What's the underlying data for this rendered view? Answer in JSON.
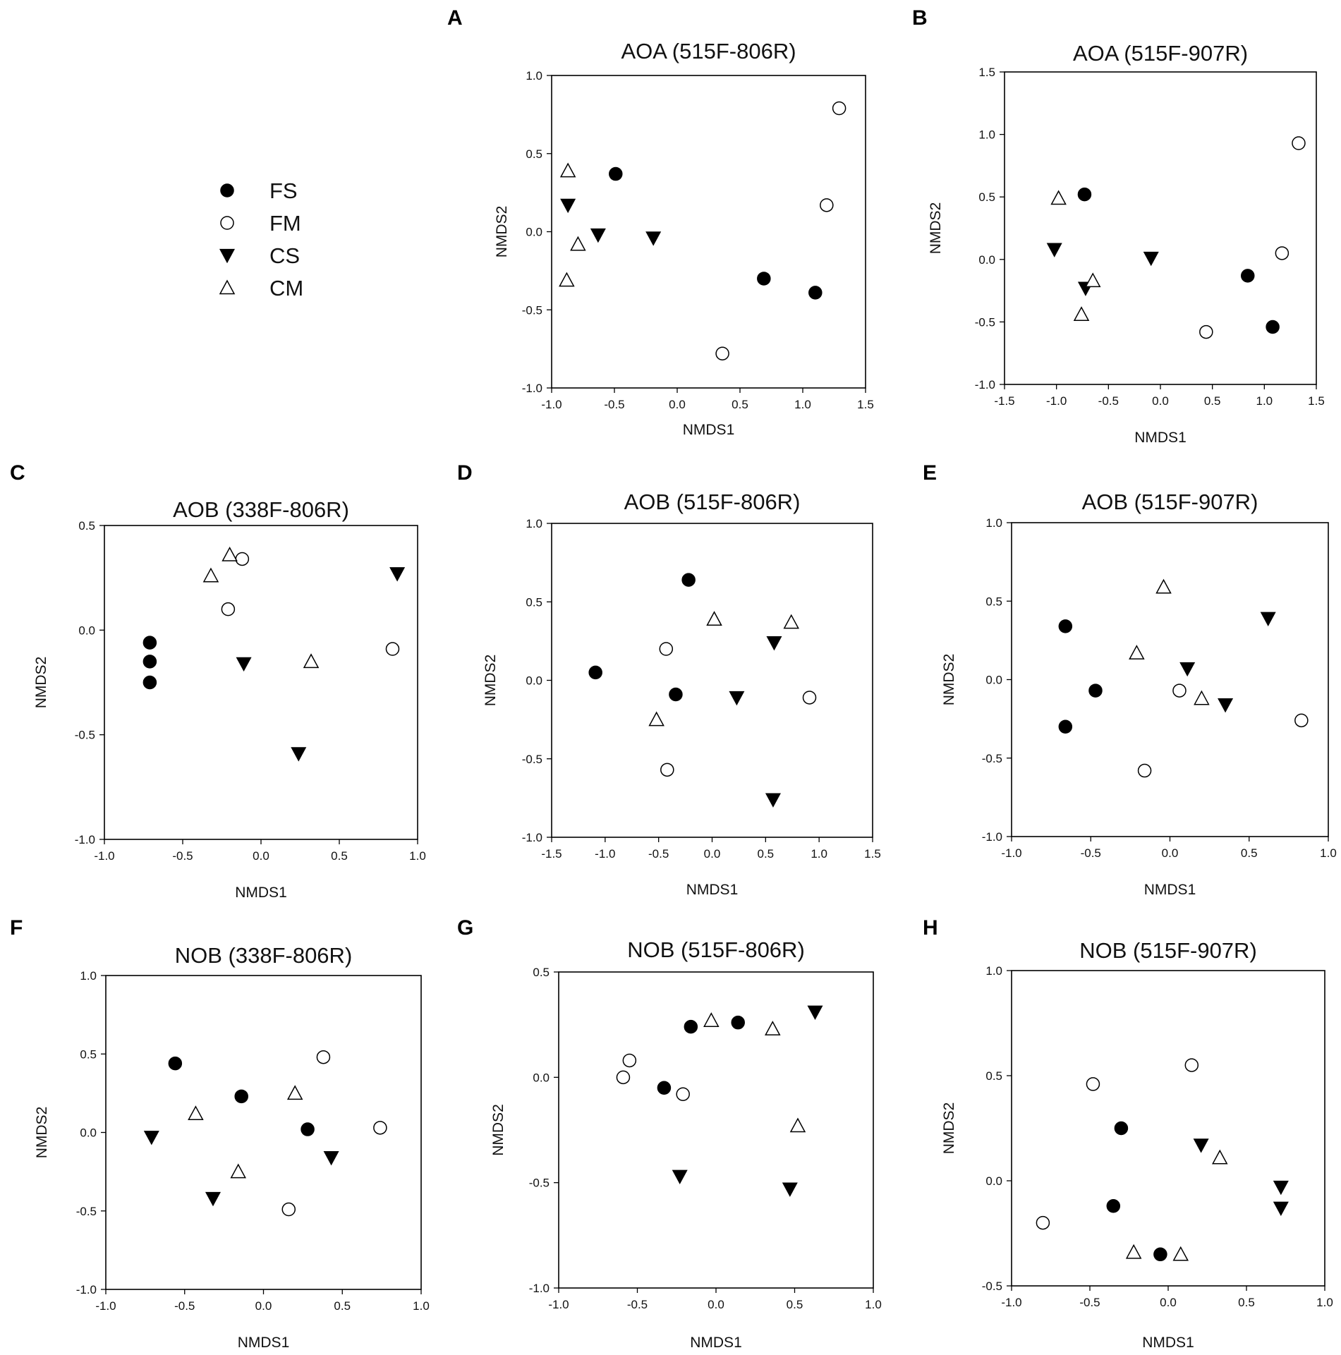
{
  "legend": [
    {
      "group": "FS",
      "label": "FS"
    },
    {
      "group": "FM",
      "label": "FM"
    },
    {
      "group": "CS",
      "label": "CS"
    },
    {
      "group": "CM",
      "label": "CM"
    }
  ],
  "chart_data": [
    {
      "id": "A",
      "letter": "A",
      "type": "scatter",
      "title": "AOA (515F-806R)",
      "xlabel": "NMDS1",
      "ylabel": "NMDS2",
      "xlim": [
        -1.0,
        1.5
      ],
      "ylim": [
        -1.0,
        1.0
      ],
      "xticks": [
        -1.0,
        -0.5,
        0.0,
        0.5,
        1.0,
        1.5
      ],
      "yticks": [
        -1.0,
        -0.5,
        0.0,
        0.5,
        1.0
      ],
      "xtick_labels": [
        "-1.0",
        "-0.5",
        "0.0",
        "0.5",
        "1.0",
        "1.5"
      ],
      "ytick_labels": [
        "-1.0",
        "-0.5",
        "0.0",
        "0.5",
        "1.0"
      ],
      "series": [
        {
          "name": "FS",
          "points": [
            [
              -0.49,
              0.37
            ],
            [
              0.69,
              -0.3
            ],
            [
              1.1,
              -0.39
            ]
          ]
        },
        {
          "name": "FM",
          "points": [
            [
              1.29,
              0.79
            ],
            [
              1.19,
              0.17
            ],
            [
              0.36,
              -0.78
            ]
          ]
        },
        {
          "name": "CS",
          "points": [
            [
              -0.87,
              0.17
            ],
            [
              -0.63,
              -0.02
            ],
            [
              -0.19,
              -0.04
            ]
          ]
        },
        {
          "name": "CM",
          "points": [
            [
              -0.87,
              0.39
            ],
            [
              -0.79,
              -0.08
            ],
            [
              -0.88,
              -0.31
            ]
          ]
        }
      ]
    },
    {
      "id": "B",
      "letter": "B",
      "type": "scatter",
      "title": "AOA (515F-907R)",
      "xlabel": "NMDS1",
      "ylabel": "NMDS2",
      "xlim": [
        -1.5,
        1.5
      ],
      "ylim": [
        -1.0,
        1.5
      ],
      "xticks": [
        -1.5,
        -1.0,
        -0.5,
        0.0,
        0.5,
        1.0,
        1.5
      ],
      "yticks": [
        -1.0,
        -0.5,
        0.0,
        0.5,
        1.0,
        1.5
      ],
      "xtick_labels": [
        "-1.5",
        "-1.0",
        "-0.5",
        "0.0",
        "0.5",
        "1.0",
        "1.5"
      ],
      "ytick_labels": [
        "-1.0",
        "-0.5",
        "0.0",
        "0.5",
        "1.0",
        "1.5"
      ],
      "series": [
        {
          "name": "FS",
          "points": [
            [
              -0.73,
              0.52
            ],
            [
              0.84,
              -0.13
            ],
            [
              1.08,
              -0.54
            ]
          ]
        },
        {
          "name": "FM",
          "points": [
            [
              1.33,
              0.93
            ],
            [
              1.17,
              0.05
            ],
            [
              0.44,
              -0.58
            ]
          ]
        },
        {
          "name": "CS",
          "points": [
            [
              -1.02,
              0.08
            ],
            [
              -0.09,
              0.01
            ],
            [
              -0.72,
              -0.23
            ]
          ]
        },
        {
          "name": "CM",
          "points": [
            [
              -0.98,
              0.49
            ],
            [
              -0.65,
              -0.17
            ],
            [
              -0.76,
              -0.44
            ]
          ]
        }
      ]
    },
    {
      "id": "C",
      "letter": "C",
      "type": "scatter",
      "title": "AOB (338F-806R)",
      "xlabel": "NMDS1",
      "ylabel": "NMDS2",
      "xlim": [
        -1.0,
        1.0
      ],
      "ylim": [
        -1.0,
        0.5
      ],
      "xticks": [
        -1.0,
        -0.5,
        0.0,
        0.5,
        1.0
      ],
      "yticks": [
        -1.0,
        -0.5,
        0.0,
        0.5
      ],
      "xtick_labels": [
        "-1.0",
        "-0.5",
        "0.0",
        "0.5",
        "1.0"
      ],
      "ytick_labels": [
        "-1.0",
        "-0.5",
        "0.0",
        "0.5"
      ],
      "series": [
        {
          "name": "FS",
          "points": [
            [
              -0.71,
              -0.06
            ],
            [
              -0.71,
              -0.15
            ],
            [
              -0.71,
              -0.25
            ]
          ]
        },
        {
          "name": "FM",
          "points": [
            [
              -0.12,
              0.34
            ],
            [
              -0.21,
              0.1
            ],
            [
              0.84,
              -0.09
            ]
          ]
        },
        {
          "name": "CS",
          "points": [
            [
              0.87,
              0.27
            ],
            [
              -0.11,
              -0.16
            ],
            [
              0.24,
              -0.59
            ]
          ]
        },
        {
          "name": "CM",
          "points": [
            [
              -0.32,
              0.26
            ],
            [
              -0.2,
              0.36
            ],
            [
              0.32,
              -0.15
            ]
          ]
        }
      ]
    },
    {
      "id": "D",
      "letter": "D",
      "type": "scatter",
      "title": "AOB (515F-806R)",
      "xlabel": "NMDS1",
      "ylabel": "NMDS2",
      "xlim": [
        -1.5,
        1.5
      ],
      "ylim": [
        -1.0,
        1.0
      ],
      "xticks": [
        -1.5,
        -1.0,
        -0.5,
        0.0,
        0.5,
        1.0,
        1.5
      ],
      "yticks": [
        -1.0,
        -0.5,
        0.0,
        0.5,
        1.0
      ],
      "xtick_labels": [
        "-1.5",
        "-1.0",
        "-0.5",
        "0.0",
        "0.5",
        "1.0",
        "1.5"
      ],
      "ytick_labels": [
        "-1.0",
        "-0.5",
        "0.0",
        "0.5",
        "1.0"
      ],
      "series": [
        {
          "name": "FS",
          "points": [
            [
              -0.22,
              0.64
            ],
            [
              -1.09,
              0.05
            ],
            [
              -0.34,
              -0.09
            ]
          ]
        },
        {
          "name": "FM",
          "points": [
            [
              -0.43,
              0.2
            ],
            [
              0.91,
              -0.11
            ],
            [
              -0.42,
              -0.57
            ]
          ]
        },
        {
          "name": "CS",
          "points": [
            [
              0.58,
              0.24
            ],
            [
              0.23,
              -0.11
            ],
            [
              0.57,
              -0.76
            ]
          ]
        },
        {
          "name": "CM",
          "points": [
            [
              0.02,
              0.39
            ],
            [
              0.74,
              0.37
            ],
            [
              -0.52,
              -0.25
            ]
          ]
        }
      ]
    },
    {
      "id": "E",
      "letter": "E",
      "type": "scatter",
      "title": "AOB (515F-907R)",
      "xlabel": "NMDS1",
      "ylabel": "NMDS2",
      "xlim": [
        -1.0,
        1.0
      ],
      "ylim": [
        -1.0,
        1.0
      ],
      "xticks": [
        -1.0,
        -0.5,
        0.0,
        0.5,
        1.0
      ],
      "yticks": [
        -1.0,
        -0.5,
        0.0,
        0.5,
        1.0
      ],
      "xtick_labels": [
        "-1.0",
        "-0.5",
        "0.0",
        "0.5",
        "1.0"
      ],
      "ytick_labels": [
        "-1.0",
        "-0.5",
        "0.0",
        "0.5",
        "1.0"
      ],
      "series": [
        {
          "name": "FS",
          "points": [
            [
              -0.66,
              0.34
            ],
            [
              -0.47,
              -0.07
            ],
            [
              -0.66,
              -0.3
            ]
          ]
        },
        {
          "name": "FM",
          "points": [
            [
              0.06,
              -0.07
            ],
            [
              -0.16,
              -0.58
            ],
            [
              0.83,
              -0.26
            ]
          ]
        },
        {
          "name": "CS",
          "points": [
            [
              0.62,
              0.39
            ],
            [
              0.11,
              0.07
            ],
            [
              0.35,
              -0.16
            ]
          ]
        },
        {
          "name": "CM",
          "points": [
            [
              -0.04,
              0.59
            ],
            [
              -0.21,
              0.17
            ],
            [
              0.2,
              -0.12
            ]
          ]
        }
      ]
    },
    {
      "id": "F",
      "letter": "F",
      "type": "scatter",
      "title": "NOB (338F-806R)",
      "xlabel": "NMDS1",
      "ylabel": "NMDS2",
      "xlim": [
        -1.0,
        1.0
      ],
      "ylim": [
        -1.0,
        1.0
      ],
      "xticks": [
        -1.0,
        -0.5,
        0.0,
        0.5,
        1.0
      ],
      "yticks": [
        -1.0,
        -0.5,
        0.0,
        0.5,
        1.0
      ],
      "xtick_labels": [
        "-1.0",
        "-0.5",
        "0.0",
        "0.5",
        "1.0"
      ],
      "ytick_labels": [
        "-1.0",
        "-0.5",
        "0.0",
        "0.5",
        "1.0"
      ],
      "series": [
        {
          "name": "FS",
          "points": [
            [
              -0.56,
              0.44
            ],
            [
              -0.14,
              0.23
            ],
            [
              0.28,
              0.02
            ]
          ]
        },
        {
          "name": "FM",
          "points": [
            [
              0.38,
              0.48
            ],
            [
              0.74,
              0.03
            ],
            [
              0.16,
              -0.49
            ]
          ]
        },
        {
          "name": "CS",
          "points": [
            [
              -0.71,
              -0.03
            ],
            [
              0.43,
              -0.16
            ],
            [
              -0.32,
              -0.42
            ]
          ]
        },
        {
          "name": "CM",
          "points": [
            [
              -0.43,
              0.12
            ],
            [
              0.2,
              0.25
            ],
            [
              -0.16,
              -0.25
            ]
          ]
        }
      ]
    },
    {
      "id": "G",
      "letter": "G",
      "type": "scatter",
      "title": "NOB (515F-806R)",
      "xlabel": "NMDS1",
      "ylabel": "NMDS2",
      "xlim": [
        -1.0,
        1.0
      ],
      "ylim": [
        -1.0,
        0.5
      ],
      "xticks": [
        -1.0,
        -0.5,
        0.0,
        0.5,
        1.0
      ],
      "yticks": [
        -1.0,
        -0.5,
        0.0,
        0.5
      ],
      "xtick_labels": [
        "-1.0",
        "-0.5",
        "0.0",
        "0.5",
        "1.0"
      ],
      "ytick_labels": [
        "-1.0",
        "-0.5",
        "0.0",
        "0.5"
      ],
      "series": [
        {
          "name": "FS",
          "points": [
            [
              -0.16,
              0.24
            ],
            [
              0.14,
              0.26
            ],
            [
              -0.33,
              -0.05
            ]
          ]
        },
        {
          "name": "FM",
          "points": [
            [
              -0.55,
              0.08
            ],
            [
              -0.59,
              0.0
            ],
            [
              -0.21,
              -0.08
            ]
          ]
        },
        {
          "name": "CS",
          "points": [
            [
              0.63,
              0.31
            ],
            [
              -0.23,
              -0.47
            ],
            [
              0.47,
              -0.53
            ]
          ]
        },
        {
          "name": "CM",
          "points": [
            [
              -0.03,
              0.27
            ],
            [
              0.36,
              0.23
            ],
            [
              0.52,
              -0.23
            ]
          ]
        }
      ]
    },
    {
      "id": "H",
      "letter": "H",
      "type": "scatter",
      "title": "NOB (515F-907R)",
      "xlabel": "NMDS1",
      "ylabel": "NMDS2",
      "xlim": [
        -1.0,
        1.0
      ],
      "ylim": [
        -0.5,
        1.0
      ],
      "xticks": [
        -1.0,
        -0.5,
        0.0,
        0.5,
        1.0
      ],
      "yticks": [
        -0.5,
        0.0,
        0.5,
        1.0
      ],
      "xtick_labels": [
        "-1.0",
        "-0.5",
        "0.0",
        "0.5",
        "1.0"
      ],
      "ytick_labels": [
        "-0.5",
        "0.0",
        "0.5",
        "1.0"
      ],
      "series": [
        {
          "name": "FS",
          "points": [
            [
              -0.3,
              0.25
            ],
            [
              -0.35,
              -0.12
            ],
            [
              -0.05,
              -0.35
            ]
          ]
        },
        {
          "name": "FM",
          "points": [
            [
              -0.48,
              0.46
            ],
            [
              0.15,
              0.55
            ],
            [
              -0.8,
              -0.2
            ]
          ]
        },
        {
          "name": "CS",
          "points": [
            [
              0.21,
              0.17
            ],
            [
              0.72,
              -0.03
            ],
            [
              0.72,
              -0.13
            ]
          ]
        },
        {
          "name": "CM",
          "points": [
            [
              0.33,
              0.11
            ],
            [
              -0.22,
              -0.34
            ],
            [
              0.08,
              -0.35
            ]
          ]
        }
      ]
    }
  ]
}
